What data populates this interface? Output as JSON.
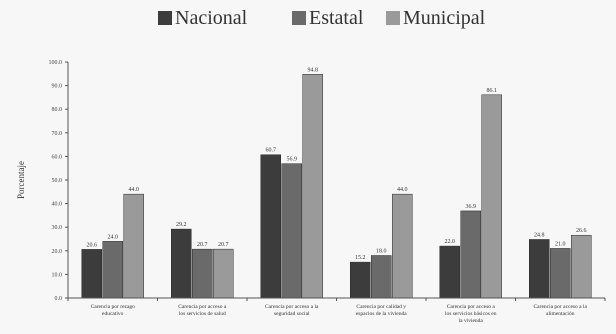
{
  "chart_data": {
    "type": "bar",
    "title": "",
    "xlabel": "",
    "ylabel": "Porcentaje",
    "ylim": [
      0,
      100
    ],
    "yticks": [
      "0.0",
      "10.0",
      "20.0",
      "30.0",
      "40.0",
      "50.0",
      "60.0",
      "70.0",
      "80.0",
      "90.0",
      "100.0"
    ],
    "grid": false,
    "legend_position": "top",
    "categories": [
      "Carencia por rezago educativo",
      "Carencia por acceso a los servicios de salud",
      "Carencia por acceso a la seguridad social",
      "Carencia por calidad y espacios de la vivienda",
      "Carencia por acceso a los servicios básicos en la vivienda",
      "Carencia por acceso a la alimentación"
    ],
    "series": [
      {
        "name": "Nacional",
        "color": "#3c3c3c",
        "values": [
          20.6,
          29.2,
          60.7,
          15.2,
          22.0,
          24.8
        ],
        "labels": [
          "20.6",
          "29.2",
          "60.7",
          "15.2",
          "22.0",
          "24.8"
        ]
      },
      {
        "name": "Estatal",
        "color": "#6a6a6a",
        "values": [
          24.0,
          20.7,
          56.9,
          18.0,
          36.9,
          21.0
        ],
        "labels": [
          "24.0",
          "20.7",
          "56.9",
          "18.0",
          "36.9",
          "21.0"
        ]
      },
      {
        "name": "Municipal",
        "color": "#9a9a9a",
        "values": [
          44.0,
          20.7,
          94.8,
          44.0,
          86.1,
          26.6
        ],
        "labels": [
          "44.0",
          "20.7",
          "94.8",
          "44.0",
          "86.1",
          "26.6"
        ]
      }
    ]
  }
}
